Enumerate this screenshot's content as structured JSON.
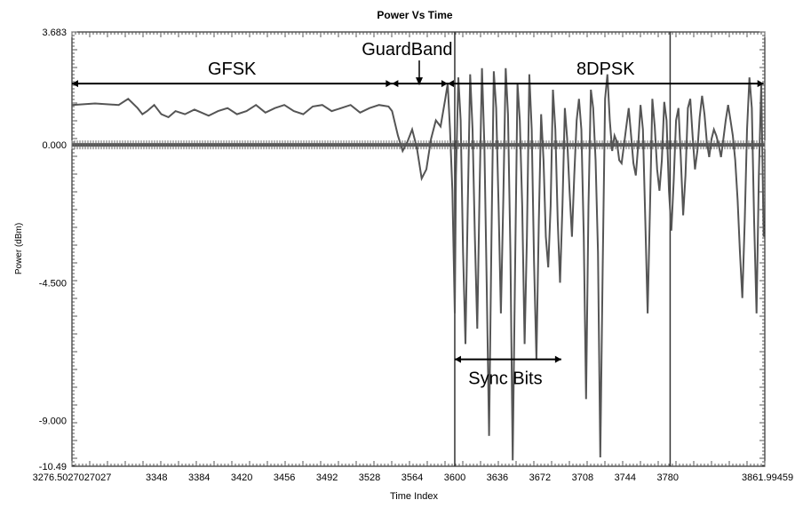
{
  "chart_data": {
    "type": "line",
    "title": "Power Vs Time",
    "xlabel": "Time Index",
    "ylabel": "Power (dBm)",
    "xlim": [
      3276.5027027027,
      3861.99459
    ],
    "ylim": [
      -10.49,
      3.683
    ],
    "x_ticks": [
      3276.5027027027,
      3348,
      3384,
      3420,
      3456,
      3492,
      3528,
      3564,
      3600,
      3636,
      3672,
      3708,
      3744,
      3780,
      3861.99459
    ],
    "x_tick_labels": [
      "3276.5027027027",
      "3348",
      "3384",
      "3420",
      "3456",
      "3492",
      "3528",
      "3564",
      "3600",
      "3636",
      "3672",
      "3708",
      "3744",
      "3780",
      "3861.99459"
    ],
    "y_ticks": [
      3.683,
      0.0,
      -4.5,
      -9.0,
      -10.49
    ],
    "y_tick_labels": [
      "3.683",
      "0.000",
      "-4.500",
      "-9.000",
      "-10.49"
    ],
    "grid": false,
    "vertical_markers": [
      3600,
      3782
    ],
    "series": [
      {
        "x": [
          3276.5,
          3296,
          3316,
          3324,
          3332,
          3336,
          3340,
          3346,
          3352,
          3358,
          3364,
          3372,
          3380,
          3386,
          3392,
          3400,
          3408,
          3416,
          3424,
          3432,
          3440,
          3448,
          3456,
          3464,
          3472,
          3480,
          3488,
          3496,
          3504,
          3512,
          3520,
          3528,
          3536,
          3544,
          3547,
          3552,
          3556,
          3560,
          3564,
          3568,
          3572,
          3576,
          3580,
          3584,
          3588,
          3592,
          3594,
          3596,
          3598,
          3600,
          3601,
          3603,
          3605,
          3607,
          3609,
          3611,
          3613,
          3615,
          3617,
          3619,
          3621,
          3623,
          3625,
          3627,
          3629,
          3631,
          3633,
          3635,
          3637,
          3639,
          3641,
          3643,
          3645,
          3647,
          3649,
          3651,
          3653,
          3655,
          3657,
          3659,
          3661,
          3663,
          3665,
          3667,
          3669,
          3671,
          3673,
          3675,
          3677,
          3679,
          3681,
          3683,
          3685,
          3687,
          3689,
          3691,
          3693,
          3695,
          3697,
          3699,
          3701,
          3703,
          3705,
          3707,
          3709,
          3711,
          3713,
          3715,
          3717,
          3719,
          3721,
          3723,
          3725,
          3727,
          3729,
          3731,
          3733,
          3735,
          3737,
          3739,
          3741,
          3743,
          3745,
          3747,
          3749,
          3751,
          3753,
          3755,
          3757,
          3759,
          3761,
          3763,
          3765,
          3767,
          3769,
          3771,
          3773,
          3775,
          3777,
          3779,
          3781,
          3783,
          3785,
          3787,
          3789,
          3791,
          3793,
          3795,
          3797,
          3799,
          3801,
          3803,
          3805,
          3807,
          3809,
          3811,
          3813,
          3815,
          3817,
          3819,
          3821,
          3823,
          3825,
          3827,
          3829,
          3831,
          3833,
          3835,
          3837,
          3839,
          3841,
          3843,
          3845,
          3847,
          3849,
          3851,
          3853,
          3855,
          3857,
          3859,
          3861
        ],
        "y": [
          1.3,
          1.35,
          1.3,
          1.5,
          1.2,
          1.0,
          1.1,
          1.3,
          1.0,
          0.9,
          1.1,
          1.0,
          1.15,
          1.05,
          0.95,
          1.1,
          1.2,
          1.0,
          1.1,
          1.3,
          1.05,
          1.2,
          1.3,
          1.1,
          1.0,
          1.25,
          1.3,
          1.1,
          1.2,
          1.3,
          1.05,
          1.2,
          1.3,
          1.25,
          1.1,
          0.3,
          -0.2,
          0.1,
          0.5,
          -0.1,
          -1.1,
          -0.8,
          0.2,
          0.8,
          0.6,
          1.5,
          2.0,
          0.5,
          -1.5,
          -5.5,
          -1.0,
          2.2,
          0.8,
          -3.5,
          -6.5,
          -2.0,
          2.3,
          0.5,
          -3.0,
          -6.0,
          -1.5,
          2.5,
          0.0,
          -4.5,
          -9.5,
          -3.0,
          2.4,
          1.2,
          -2.0,
          -5.5,
          -1.8,
          2.5,
          1.0,
          -3.5,
          -10.3,
          -4.0,
          2.0,
          0.8,
          -2.0,
          -6.5,
          -3.0,
          2.3,
          0.5,
          -3.8,
          -7.0,
          -2.5,
          1.0,
          -0.5,
          -3.0,
          -4.0,
          -2.0,
          1.8,
          0.5,
          -2.5,
          -4.5,
          -2.0,
          1.2,
          0.2,
          -1.5,
          -3.0,
          -1.0,
          0.8,
          1.5,
          0.5,
          -3.0,
          -8.3,
          -2.0,
          1.8,
          1.2,
          -0.5,
          -3.5,
          -10.2,
          -4.0,
          1.5,
          2.3,
          0.8,
          -0.2,
          0.3,
          0.1,
          -0.5,
          -0.6,
          0.0,
          0.6,
          1.2,
          0.3,
          -0.6,
          -1.0,
          0.0,
          1.3,
          0.5,
          -2.5,
          -5.5,
          -2.0,
          1.5,
          0.6,
          -0.8,
          -1.5,
          -0.5,
          1.4,
          0.8,
          -1.5,
          -2.8,
          -1.2,
          0.8,
          1.2,
          -0.4,
          -2.3,
          -1.0,
          1.2,
          1.5,
          0.3,
          -0.8,
          -0.2,
          0.9,
          1.6,
          1.0,
          0.1,
          -0.4,
          0.2,
          0.5,
          0.3,
          0.0,
          -0.4,
          0.2,
          0.8,
          1.3,
          0.8,
          0.3,
          -0.5,
          -1.8,
          -3.5,
          -5.0,
          -2.5,
          0.5,
          2.2,
          1.2,
          -2.5,
          -5.5,
          -1.0,
          2.0,
          -3.0
        ]
      }
    ],
    "annotations": [
      {
        "text": "GFSK",
        "arrow_from": 3276.5,
        "arrow_to": 3547,
        "y": 2.0
      },
      {
        "text": "GuardBand",
        "arrow_from": 3547,
        "arrow_to": 3594,
        "y": 2.0,
        "down_arrow_at": 3570
      },
      {
        "text": "8DPSK",
        "arrow_from": 3594,
        "arrow_to": 3861,
        "y": 2.0
      },
      {
        "text": "Sync Bits",
        "arrow_from": 3600,
        "arrow_to": 3690,
        "y": -7.0
      }
    ]
  }
}
